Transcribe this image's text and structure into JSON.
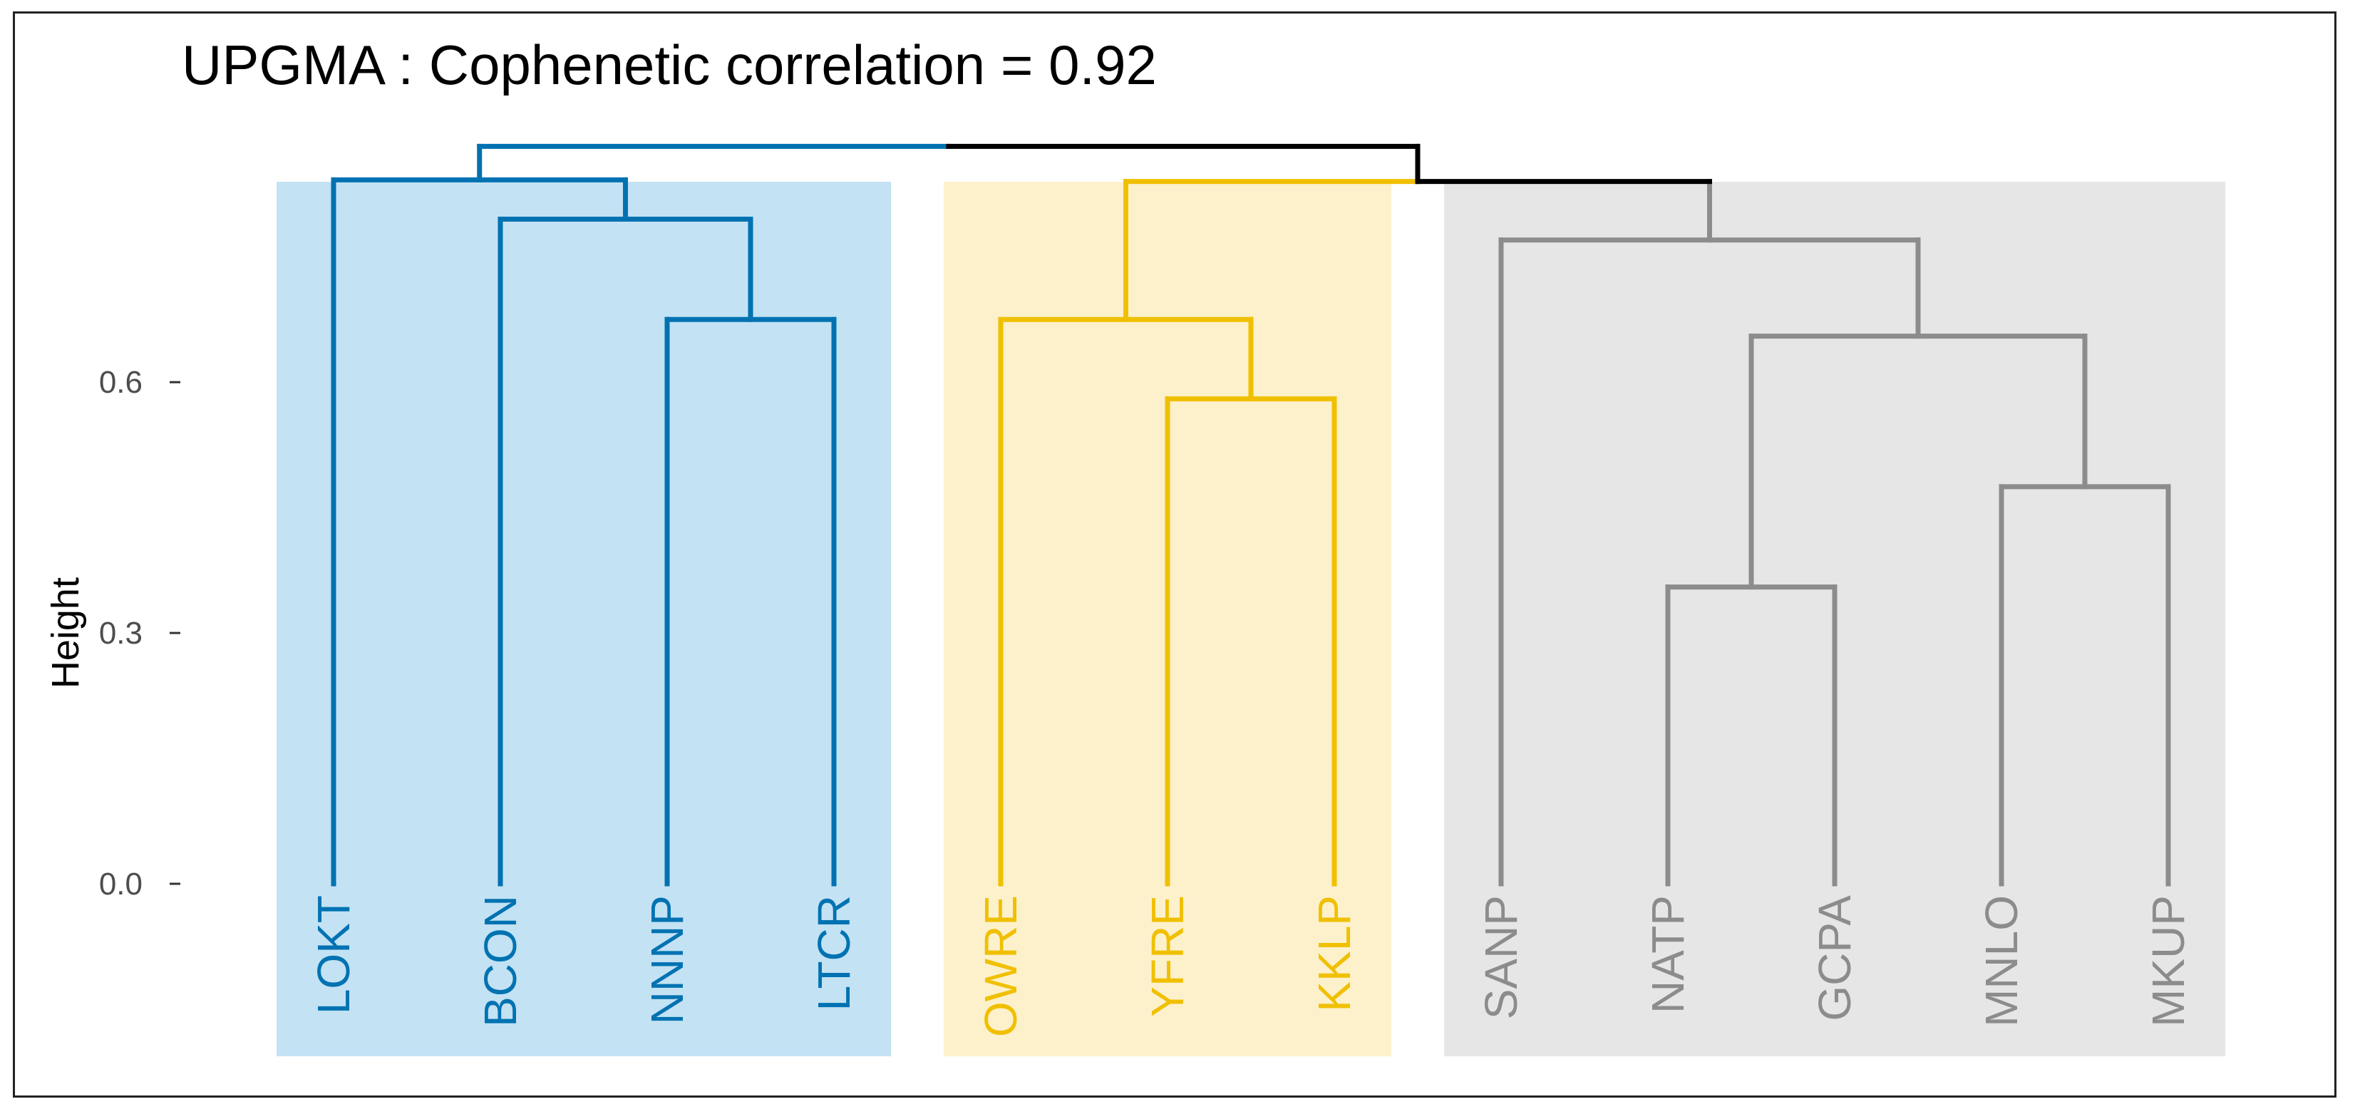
{
  "chart_data": {
    "type": "dendrogram",
    "title": "UPGMA : Cophenetic correlation = 0.92",
    "xlabel": "",
    "ylabel": "Height",
    "ylim": [
      -0.24,
      0.92
    ],
    "yticks": [
      {
        "value": 0.0,
        "label": "0.0"
      },
      {
        "value": 0.3,
        "label": "0.3"
      },
      {
        "value": 0.6,
        "label": "0.6"
      }
    ],
    "leaves": [
      "LOKT",
      "BCON",
      "NNNP",
      "LTCR",
      "OWRE",
      "YFRE",
      "KKLP",
      "SANP",
      "NATP",
      "GCPA",
      "MNLO",
      "MKUP"
    ],
    "clusters": [
      {
        "leaves": [
          "LOKT",
          "BCON",
          "NNNP",
          "LTCR"
        ],
        "color": "#0072B2",
        "fill": "#c3e2f3"
      },
      {
        "leaves": [
          "OWRE",
          "YFRE",
          "KKLP"
        ],
        "color": "#F0C000",
        "fill": "#fdf1cc"
      },
      {
        "leaves": [
          "SANP",
          "NATP",
          "GCPA",
          "MNLO",
          "MKUP"
        ],
        "color": "#8c8c8c",
        "fill": "#e6e6e6"
      }
    ],
    "merges": [
      {
        "id": "m1",
        "left": "NATP",
        "right": "GCPA",
        "height": 0.355
      },
      {
        "id": "m2",
        "left": "MNLO",
        "right": "MKUP",
        "height": 0.475
      },
      {
        "id": "m3",
        "left": "YFRE",
        "right": "KKLP",
        "height": 0.58
      },
      {
        "id": "m4",
        "left": "m1",
        "right": "m2",
        "height": 0.655
      },
      {
        "id": "m5",
        "left": "NNNP",
        "right": "LTCR",
        "height": 0.675
      },
      {
        "id": "m6",
        "left": "OWRE",
        "right": "m3",
        "height": 0.675
      },
      {
        "id": "m7",
        "left": "SANP",
        "right": "m4",
        "height": 0.77
      },
      {
        "id": "m8",
        "left": "BCON",
        "right": "m5",
        "height": 0.795
      },
      {
        "id": "m9",
        "left": "m6",
        "right": "m7",
        "height": 0.84
      },
      {
        "id": "m10",
        "left": "LOKT",
        "right": "m8",
        "height": 0.842
      },
      {
        "id": "m11",
        "left": "m10",
        "right": "m9",
        "height": 0.882
      }
    ],
    "root_color": "#000000"
  }
}
